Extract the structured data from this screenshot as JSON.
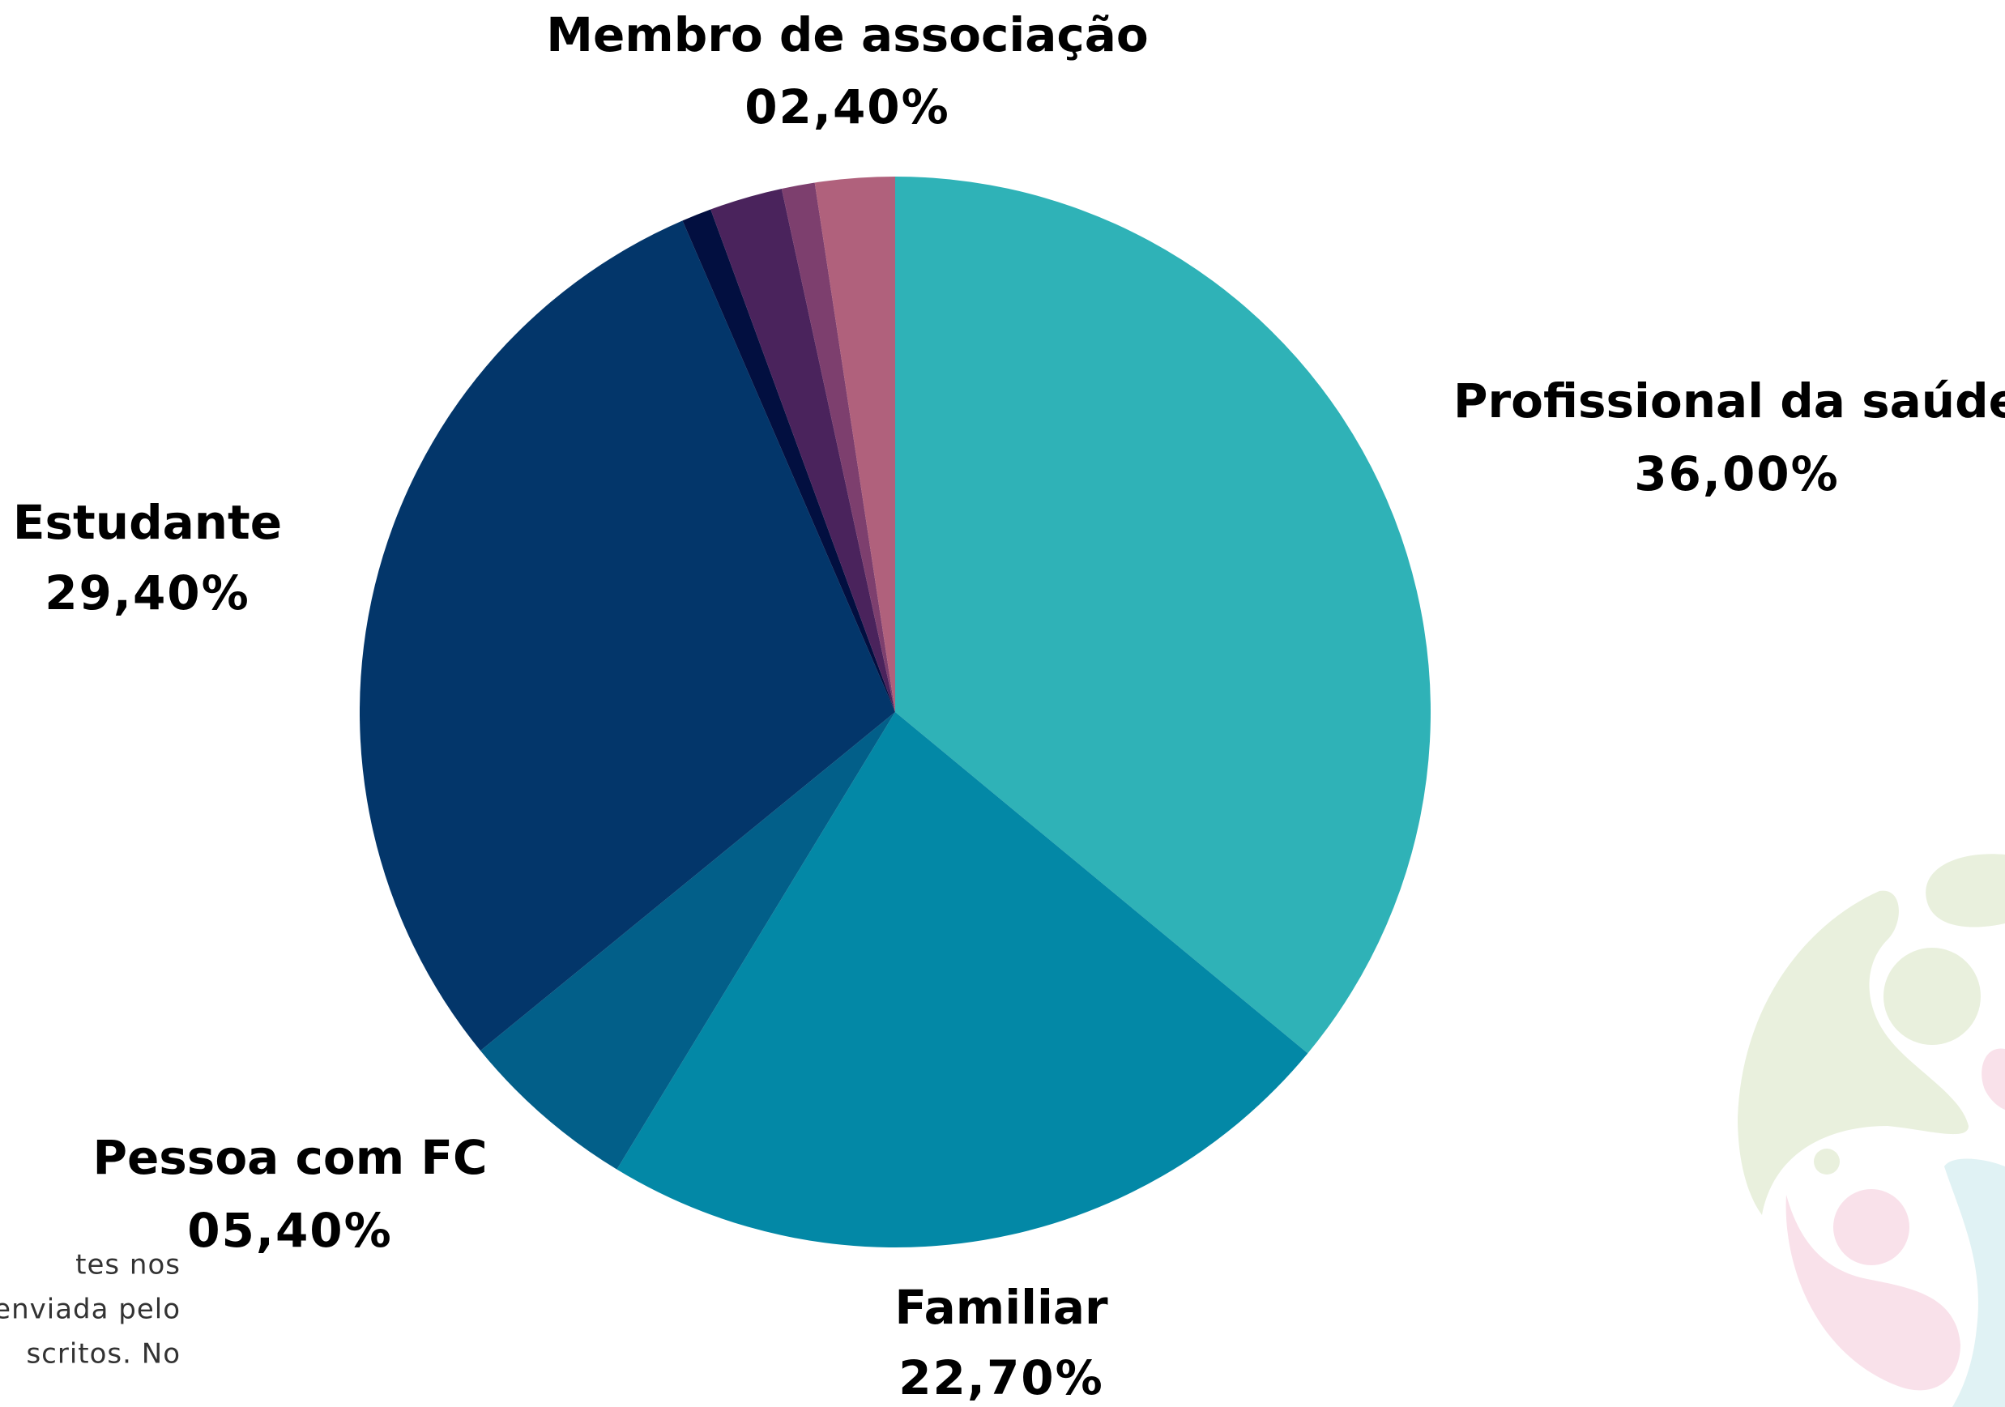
{
  "chart_data": {
    "type": "pie",
    "categories": [
      "Profissional da saúde",
      "Familiar",
      "Pessoa com FC",
      "Estudante",
      null,
      null,
      null,
      "Membro de associação"
    ],
    "values": [
      36,
      22.7,
      5.4,
      29.4,
      0.9,
      2.2,
      1.0,
      2.4
    ],
    "value_labels": [
      "36,00%",
      "22,70%",
      "05,40%",
      "29,40%",
      null,
      null,
      null,
      "02,40%"
    ],
    "colors": [
      "#2fb2b7",
      "#0388a6",
      "#025f89",
      "#03366a",
      "#020f40",
      "#4a235c",
      "#7d3f6e",
      "#b0617c"
    ],
    "start_angle": 0,
    "direction": "clockwise"
  },
  "note_lines": [
    "tes nos",
    "enviada pelo",
    "scritos. No"
  ]
}
